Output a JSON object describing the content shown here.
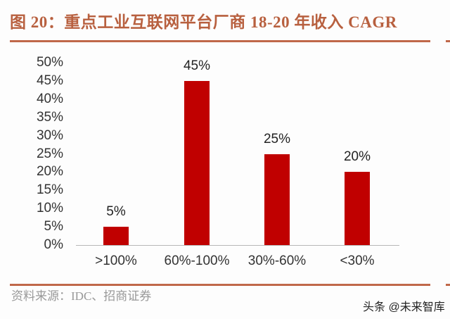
{
  "title": "图 20：重点工业互联网平台厂商 18-20 年收入 CAGR",
  "source": "资料来源：IDC、招商证券",
  "watermark": "头条 @未来智库",
  "colors": {
    "bar": "#c00000",
    "title": "#b8603f",
    "rule": "#c0684a"
  },
  "y_ticks": [
    "50%",
    "45%",
    "40%",
    "35%",
    "30%",
    "25%",
    "20%",
    "15%",
    "10%",
    "5%",
    "0%"
  ],
  "chart_data": {
    "type": "bar",
    "title": "重点工业互联网平台厂商 18-20 年收入 CAGR",
    "categories": [
      ">100%",
      "60%-100%",
      "30%-60%",
      "<30%"
    ],
    "values": [
      5,
      45,
      25,
      20
    ],
    "value_labels": [
      "5%",
      "45%",
      "25%",
      "20%"
    ],
    "xlabel": "",
    "ylabel": "",
    "ylim": [
      0,
      50
    ],
    "y_tick_step": 5,
    "y_format": "percent",
    "grid": false,
    "legend": "none"
  }
}
